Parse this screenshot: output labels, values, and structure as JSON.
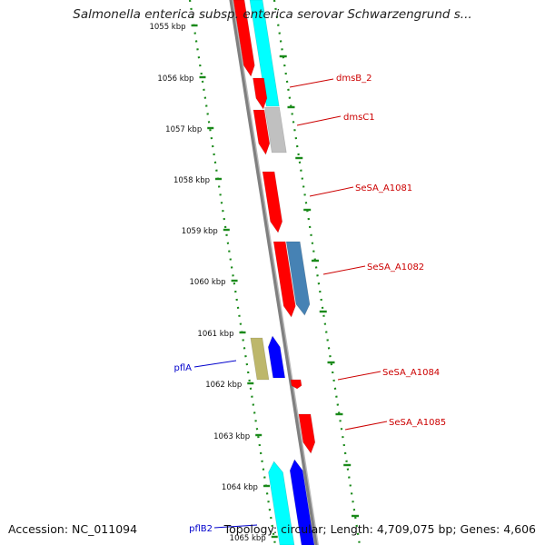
{
  "title": "Salmonella enterica subsp. enterica serovar Schwarzengrund s...",
  "footer": {
    "accession": "Accession: NC_011094",
    "summary": "Topology: circular; Length: 4,709,075 bp; Genes: 4,606"
  },
  "colors": {
    "backbone": "#808080",
    "tick": "#1a8a1a",
    "label_forward": "#0000cc",
    "label_reverse": "#cc0000",
    "red_gene": "#ff0000",
    "cyan_gene": "#00ffff",
    "blue_gene": "#0000ff",
    "steelblue_gene": "#4682b4",
    "gray_gene": "#c0c0c0",
    "khaki_gene": "#bdb76b"
  },
  "kbp_ticks": [
    "1055 kbp",
    "1056 kbp",
    "1057 kbp",
    "1058 kbp",
    "1059 kbp",
    "1060 kbp",
    "1061 kbp",
    "1062 kbp",
    "1063 kbp",
    "1064 kbp",
    "1065 kbp"
  ],
  "gene_labels": [
    {
      "text": "dmsB_2",
      "color": "#cc0000"
    },
    {
      "text": "dmsC1",
      "color": "#cc0000"
    },
    {
      "text": "SeSA_A1081",
      "color": "#cc0000"
    },
    {
      "text": "SeSA_A1082",
      "color": "#cc0000"
    },
    {
      "text": "pflA",
      "color": "#0000cc"
    },
    {
      "text": "SeSA_A1084",
      "color": "#cc0000"
    },
    {
      "text": "SeSA_A1085",
      "color": "#cc0000"
    },
    {
      "text": "pflB2",
      "color": "#0000cc"
    }
  ]
}
